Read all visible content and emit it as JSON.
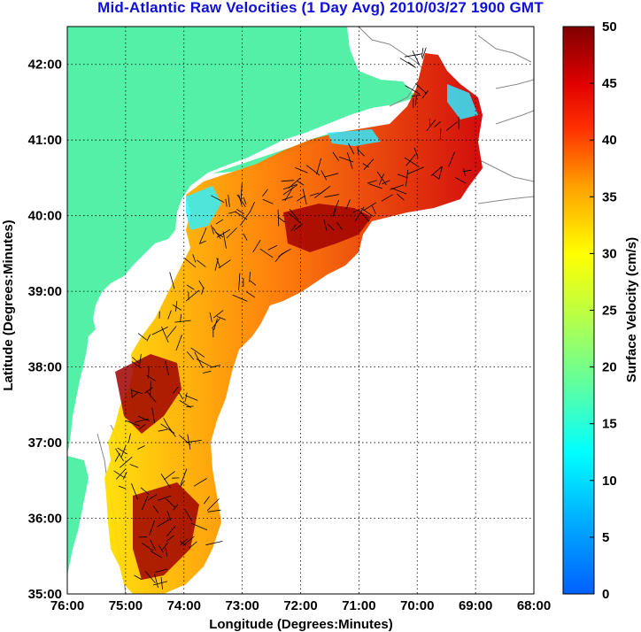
{
  "title": "Mid-Atlantic Raw Velocities (1 Day Avg) 2010/03/27 1900 GMT",
  "colors": {
    "title": "#1010d8",
    "land": "#55f0a8",
    "coast_contour": "#8a8a8a",
    "grid": "#000000",
    "arrows": "#000000"
  },
  "map": {
    "x_label": "Longitude (Degrees:Minutes)",
    "y_label": "Latitude (Degrees:Minutes)",
    "lon_range": [
      -76,
      -68
    ],
    "lat_range": [
      35,
      42.5
    ],
    "x_ticks": [
      "76:00",
      "75:00",
      "74:00",
      "73:00",
      "72:00",
      "71:00",
      "70:00",
      "69:00",
      "68:00"
    ],
    "y_ticks": [
      "35:00",
      "36:00",
      "37:00",
      "38:00",
      "39:00",
      "40:00",
      "41:00",
      "42:00"
    ],
    "grid": true
  },
  "colorbar": {
    "label": "Surface Velocity (cm/s)",
    "ticks": [
      "0",
      "5",
      "10",
      "15",
      "20",
      "25",
      "30",
      "35",
      "40",
      "45",
      "50"
    ],
    "range": [
      0,
      50
    ],
    "colormap": "jet"
  }
}
